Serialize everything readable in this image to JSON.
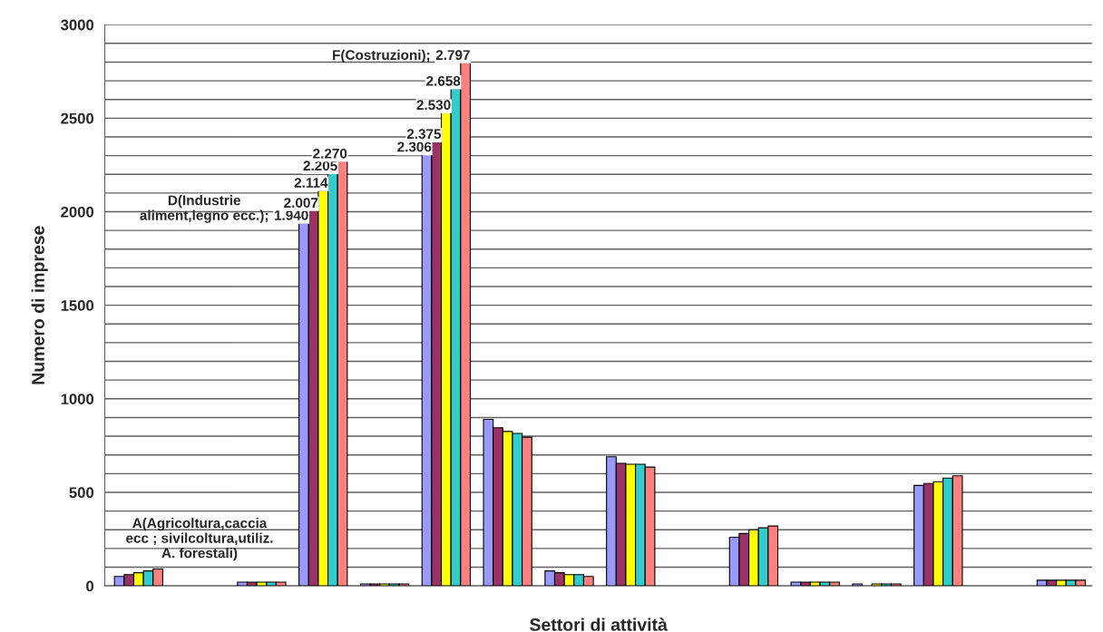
{
  "chart_data": {
    "type": "bar",
    "xlabel": "Settori di attività",
    "ylabel": "Numero di imprese",
    "categories": [
      null,
      null,
      null,
      null,
      null,
      null,
      null,
      null,
      null,
      null,
      null,
      null,
      null,
      null,
      null,
      null
    ],
    "series": [
      {
        "color": "#9999ff",
        "values": [
          50,
          null,
          20,
          1940,
          10,
          2306,
          890,
          80,
          690,
          null,
          260,
          20,
          10,
          537,
          null,
          30
        ],
        "value_labels": [
          null,
          null,
          null,
          "1.940",
          null,
          "2.306",
          null,
          null,
          null,
          null,
          null,
          null,
          null,
          null,
          null,
          null
        ]
      },
      {
        "color": "#993366",
        "values": [
          60,
          null,
          20,
          2007,
          10,
          2375,
          845,
          70,
          655,
          null,
          280,
          20,
          null,
          547,
          null,
          30
        ],
        "value_labels": [
          null,
          null,
          null,
          "2.007",
          null,
          "2.375",
          null,
          null,
          null,
          null,
          null,
          null,
          null,
          null,
          null,
          null
        ]
      },
      {
        "color": "#ffff00",
        "values": [
          70,
          null,
          20,
          2114,
          10,
          2530,
          825,
          60,
          650,
          null,
          300,
          20,
          10,
          557,
          null,
          30
        ],
        "value_labels": [
          null,
          null,
          null,
          "2.114",
          null,
          "2.530",
          null,
          null,
          null,
          null,
          null,
          null,
          null,
          null,
          null,
          null
        ]
      },
      {
        "color": "#33cccc",
        "values": [
          80,
          null,
          20,
          2205,
          10,
          2658,
          815,
          60,
          650,
          null,
          310,
          20,
          10,
          576,
          null,
          30
        ],
        "value_labels": [
          null,
          null,
          null,
          "2.205",
          null,
          "2.658",
          null,
          null,
          null,
          null,
          null,
          null,
          null,
          null,
          null,
          null
        ]
      },
      {
        "color": "#ff8080",
        "values": [
          90,
          null,
          20,
          2270,
          10,
          2797,
          795,
          50,
          635,
          null,
          320,
          20,
          10,
          588,
          null,
          30
        ],
        "value_labels": [
          null,
          null,
          null,
          "2.270",
          null,
          "2.797",
          null,
          null,
          null,
          null,
          null,
          null,
          null,
          null,
          null,
          null
        ]
      }
    ],
    "ylim": [
      0,
      3000
    ],
    "yticks": [
      0,
      {
        "value": 100,
        "label": null
      },
      {
        "value": 200,
        "label": null
      },
      {
        "value": 300,
        "label": null
      },
      {
        "value": 400,
        "label": null
      },
      500,
      {
        "value": 600,
        "label": null
      },
      {
        "value": 700,
        "label": null
      },
      {
        "value": 800,
        "label": null
      },
      {
        "value": 900,
        "label": null
      },
      1000,
      {
        "value": 1100,
        "label": null
      },
      {
        "value": 1200,
        "label": null
      },
      {
        "value": 1300,
        "label": null
      },
      {
        "value": 1400,
        "label": null
      },
      1500,
      {
        "value": 1600,
        "label": null
      },
      {
        "value": 1700,
        "label": null
      },
      {
        "value": 1800,
        "label": null
      },
      {
        "value": 1900,
        "label": null
      },
      2000,
      {
        "value": 2100,
        "label": null
      },
      {
        "value": 2200,
        "label": null
      },
      {
        "value": 2300,
        "label": null
      },
      {
        "value": 2400,
        "label": null
      },
      2500,
      {
        "value": 2600,
        "label": null
      },
      {
        "value": 2700,
        "label": null
      },
      {
        "value": 2800,
        "label": null
      },
      {
        "value": 2900,
        "label": null
      },
      3000
    ],
    "grid": "y",
    "annotations": [
      "A(Agricoltura,caccia\necc ; sivilcoltura,utiliz.\nA. forestali)",
      "D(Industrie\naliment,legno ecc.);",
      "F(Costruzioni);"
    ]
  }
}
